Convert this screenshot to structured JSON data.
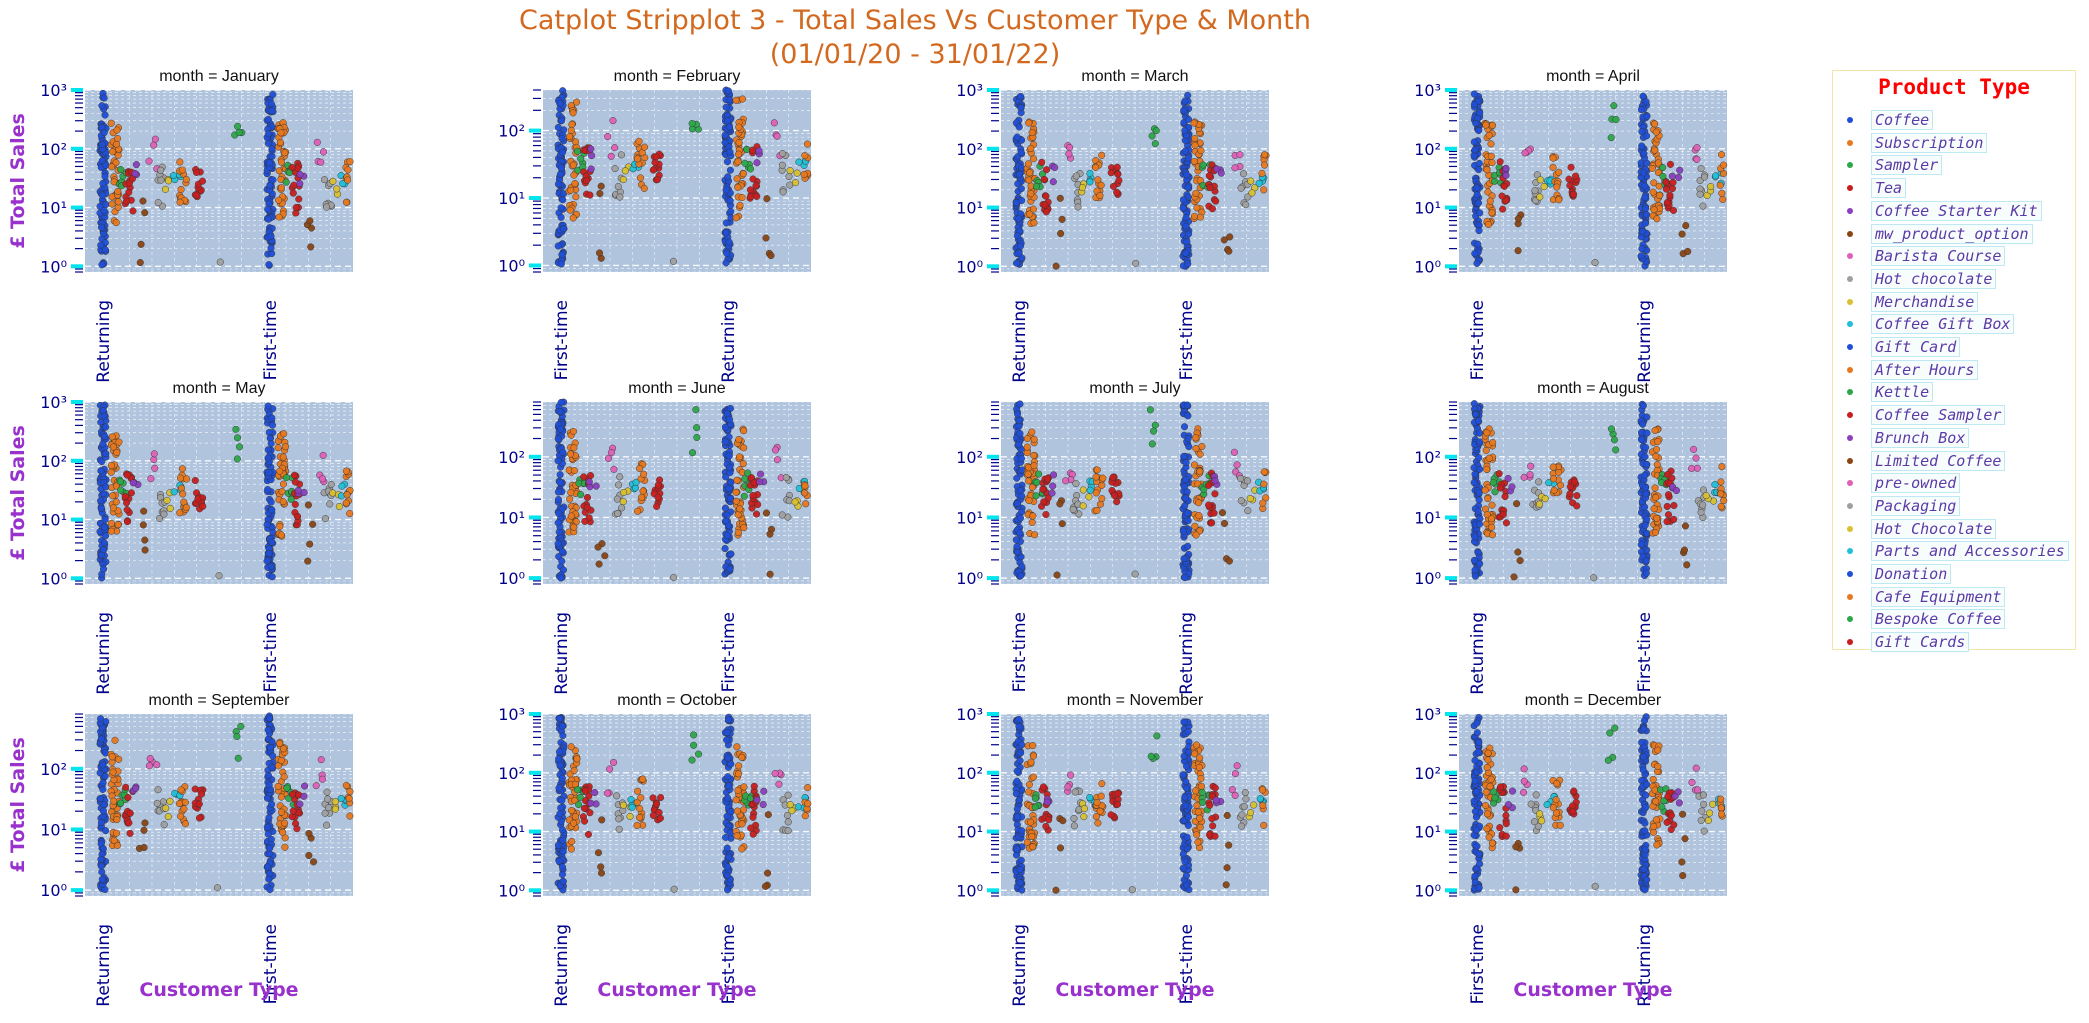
{
  "title_line1": "Catplot Stripplot 3 - Total Sales Vs Customer Type & Month",
  "title_line2": "(01/01/20 - 31/01/22)",
  "legend_title": "Product Type",
  "products": [
    {
      "name": "Coffee",
      "color": "#1f4fd8"
    },
    {
      "name": "Subscription",
      "color": "#e8781e"
    },
    {
      "name": "Sampler",
      "color": "#2ca84a"
    },
    {
      "name": "Tea",
      "color": "#c81e1e"
    },
    {
      "name": "Coffee Starter Kit",
      "color": "#8a3fbf"
    },
    {
      "name": "mw_product_option",
      "color": "#8b4513"
    },
    {
      "name": "Barista Course",
      "color": "#e060b8"
    },
    {
      "name": "Hot chocolate",
      "color": "#a0a0a0"
    },
    {
      "name": "Merchandise",
      "color": "#d8c030"
    },
    {
      "name": "Coffee Gift Box",
      "color": "#20c0d8"
    },
    {
      "name": "Gift Card",
      "color": "#1f4fd8"
    },
    {
      "name": "After Hours",
      "color": "#e8781e"
    },
    {
      "name": "Kettle",
      "color": "#2ca84a"
    },
    {
      "name": "Coffee Sampler",
      "color": "#c81e1e"
    },
    {
      "name": "Brunch Box",
      "color": "#8a3fbf"
    },
    {
      "name": "Limited Coffee",
      "color": "#8b4513"
    },
    {
      "name": "pre-owned",
      "color": "#e060b8"
    },
    {
      "name": "Packaging",
      "color": "#a0a0a0"
    },
    {
      "name": "Hot Chocolate",
      "color": "#d8c030"
    },
    {
      "name": "Parts and Accessories",
      "color": "#20c0d8"
    },
    {
      "name": "Donation",
      "color": "#1f4fd8"
    },
    {
      "name": "Cafe Equipment",
      "color": "#e8781e"
    },
    {
      "name": "Bespoke Coffee",
      "color": "#2ca84a"
    },
    {
      "name": "Gift Cards",
      "color": "#c81e1e"
    }
  ],
  "chart_data": {
    "type": "scatter",
    "kind": "stripplot",
    "xlabel": "Customer Type",
    "ylabel": "£ Total Sales",
    "yscale": "log",
    "ylim": [
      0.8,
      1000
    ],
    "yticks": [
      "10⁰",
      "10¹",
      "10²",
      "10³"
    ],
    "grid": true,
    "legend_placement": "right",
    "facets": [
      {
        "title": "month = January",
        "x_categories": [
          "Returning",
          "First-time"
        ],
        "ymax": 1000
      },
      {
        "title": "month = February",
        "x_categories": [
          "First-time",
          "Returning"
        ],
        "ymax": 400
      },
      {
        "title": "month = March",
        "x_categories": [
          "Returning",
          "First-time"
        ],
        "ymax": 1000
      },
      {
        "title": "month = April",
        "x_categories": [
          "First-time",
          "Returning"
        ],
        "ymax": 1000
      },
      {
        "title": "month = May",
        "x_categories": [
          "Returning",
          "First-time"
        ],
        "ymax": 1000
      },
      {
        "title": "month = June",
        "x_categories": [
          "Returning",
          "First-time"
        ],
        "ymax": 800
      },
      {
        "title": "month = July",
        "x_categories": [
          "First-time",
          "Returning"
        ],
        "ymax": 800
      },
      {
        "title": "month = August",
        "x_categories": [
          "Returning",
          "First-time"
        ],
        "ymax": 800
      },
      {
        "title": "month = September",
        "x_categories": [
          "Returning",
          "First-time"
        ],
        "ymax": 800
      },
      {
        "title": "month = October",
        "x_categories": [
          "Returning",
          "First-time"
        ],
        "ymax": 1000
      },
      {
        "title": "month = November",
        "x_categories": [
          "Returning",
          "First-time"
        ],
        "ymax": 1000
      },
      {
        "title": "month = December",
        "x_categories": [
          "First-time",
          "Returning"
        ],
        "ymax": 1000
      }
    ],
    "series_ranges": [
      {
        "product": "Coffee",
        "ymin": 1,
        "ymax": 900
      },
      {
        "product": "Subscription",
        "ymin": 5,
        "ymax": 350
      },
      {
        "product": "Sampler",
        "ymin": 20,
        "ymax": 60
      },
      {
        "product": "Tea",
        "ymin": 8,
        "ymax": 60
      },
      {
        "product": "Coffee Starter Kit",
        "ymin": 25,
        "ymax": 60
      },
      {
        "product": "mw_product_option",
        "ymin": 1,
        "ymax": 25
      },
      {
        "product": "Barista Course",
        "ymin": 40,
        "ymax": 200
      },
      {
        "product": "Hot chocolate",
        "ymin": 1,
        "ymax": 60
      },
      {
        "product": "Merchandise",
        "ymin": 2,
        "ymax": 30
      },
      {
        "product": "Coffee Gift Box",
        "ymin": 0.6,
        "ymax": 40
      },
      {
        "product": "Bespoke Coffee",
        "ymin": 90,
        "ymax": 700
      }
    ]
  }
}
